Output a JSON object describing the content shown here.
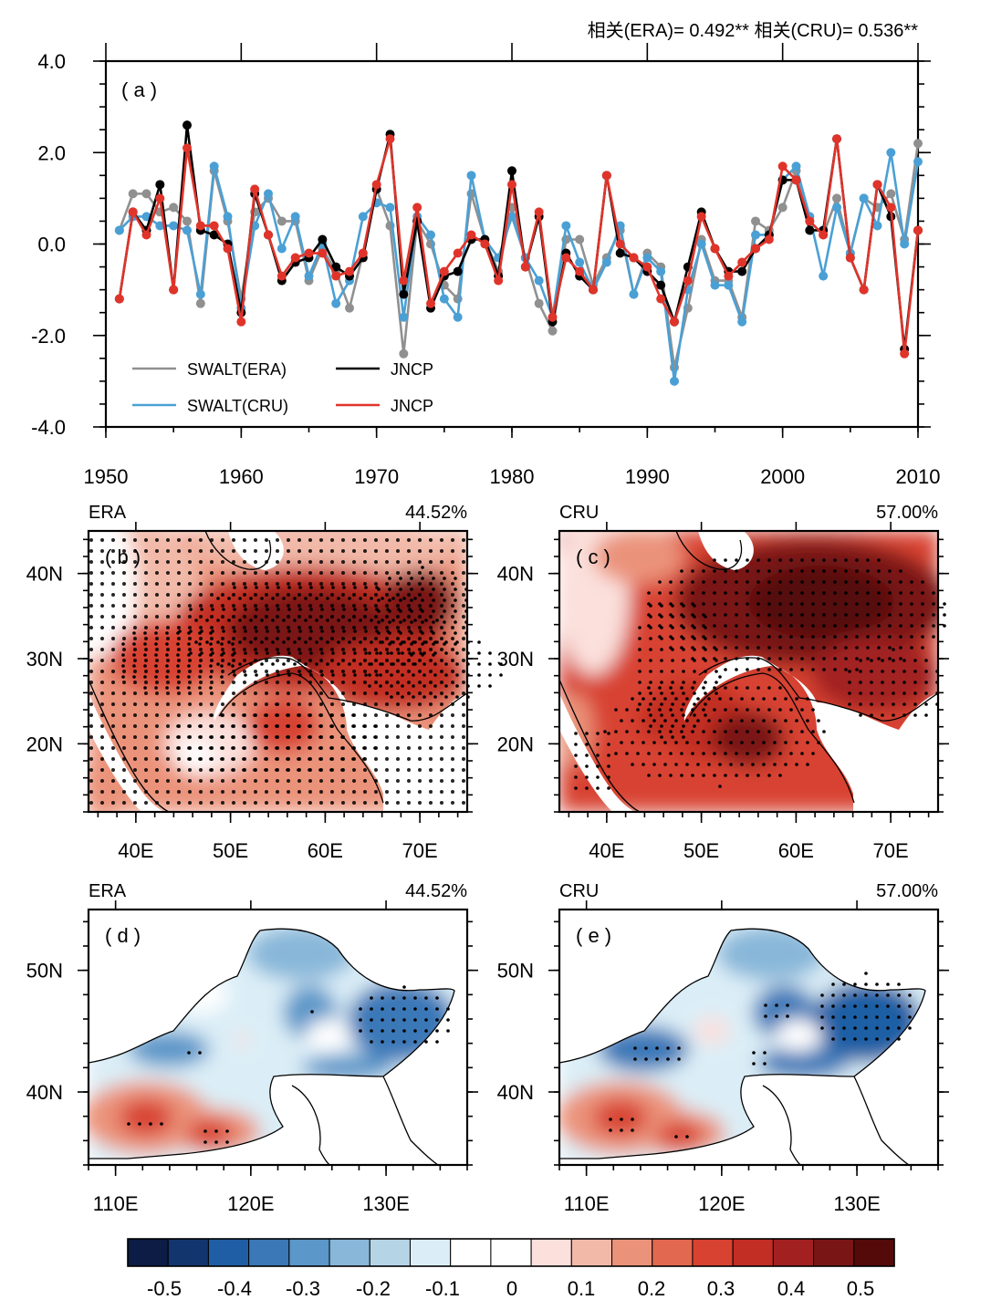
{
  "header": {
    "correlation_text": "相关(ERA)= 0.492** 相关(CRU)= 0.536**"
  },
  "chart_data": [
    {
      "panel": "(a)",
      "type": "line",
      "xlim": [
        1950,
        2010
      ],
      "ylim": [
        -4.0,
        4.0
      ],
      "xticks": [
        "1950",
        "1960",
        "1970",
        "1980",
        "1990",
        "2000",
        "2010"
      ],
      "yticks": [
        "4.0",
        "2.0",
        "0.0",
        "-2.0",
        "-4.0"
      ],
      "legend_placement": "lower-left",
      "x": [
        1951,
        1952,
        1953,
        1954,
        1955,
        1956,
        1957,
        1958,
        1959,
        1960,
        1961,
        1962,
        1963,
        1964,
        1965,
        1966,
        1967,
        1968,
        1969,
        1970,
        1971,
        1972,
        1973,
        1974,
        1975,
        1976,
        1977,
        1978,
        1979,
        1980,
        1981,
        1982,
        1983,
        1984,
        1985,
        1986,
        1987,
        1988,
        1989,
        1990,
        1991,
        1992,
        1993,
        1994,
        1995,
        1996,
        1997,
        1998,
        1999,
        2000,
        2001,
        2002,
        2003,
        2004,
        2005,
        2006,
        2007,
        2008,
        2009,
        2010
      ],
      "series": [
        {
          "name": "SWALT(ERA)",
          "color": "#909090",
          "values": [
            0.3,
            1.1,
            1.1,
            0.7,
            0.8,
            0.5,
            -1.3,
            1.6,
            0.5,
            -1.2,
            0.7,
            1.0,
            0.5,
            0.5,
            -0.8,
            -0.1,
            -0.6,
            -1.4,
            -0.2,
            1.2,
            0.4,
            -2.4,
            0.5,
            0.0,
            -0.9,
            -1.2,
            1.1,
            0.1,
            -0.6,
            0.8,
            -0.3,
            -1.3,
            -1.9,
            0.1,
            0.1,
            -0.9,
            -0.3,
            0.3,
            -1.1,
            -0.2,
            -0.5,
            -2.7,
            -1.4,
            0.1,
            -0.8,
            -0.8,
            -1.6,
            0.5,
            0.3,
            0.8,
            1.6,
            0.5,
            0.2,
            1.0,
            -0.2,
            1.0,
            0.8,
            1.1,
            0.1,
            2.2
          ]
        },
        {
          "name": "SWALT(CRU)",
          "color": "#4aa0d5",
          "values": [
            0.3,
            0.6,
            0.6,
            0.4,
            0.4,
            0.3,
            -1.1,
            1.7,
            0.6,
            -1.4,
            0.4,
            1.1,
            -0.1,
            0.6,
            -0.7,
            0.0,
            -1.3,
            -0.8,
            0.6,
            0.9,
            0.8,
            -1.6,
            0.6,
            0.2,
            -1.2,
            -1.6,
            1.5,
            0.1,
            -0.3,
            0.6,
            -0.3,
            -0.8,
            -1.6,
            0.4,
            -0.4,
            -1.0,
            -0.4,
            0.4,
            -1.1,
            -0.3,
            -0.6,
            -3.0,
            -1.0,
            0.0,
            -0.9,
            -0.9,
            -1.7,
            0.2,
            0.2,
            1.4,
            1.7,
            0.6,
            -0.7,
            0.8,
            -0.2,
            1.0,
            0.4,
            2.0,
            0.0,
            1.8
          ]
        },
        {
          "name": "JNCP",
          "color": "#000000",
          "values": [
            -1.2,
            0.7,
            0.3,
            1.3,
            -1.0,
            2.6,
            0.3,
            0.2,
            0.0,
            -1.5,
            1.1,
            0.2,
            -0.8,
            -0.4,
            -0.3,
            0.1,
            -0.5,
            -0.7,
            -0.3,
            1.2,
            2.4,
            -1.1,
            0.5,
            -1.4,
            -0.7,
            -0.6,
            0.1,
            0.1,
            -0.7,
            1.6,
            -0.5,
            0.6,
            -1.7,
            -0.2,
            -0.7,
            -1.0,
            1.5,
            -0.2,
            -0.3,
            -0.6,
            -0.9,
            -1.7,
            -0.5,
            0.7,
            -0.1,
            -0.6,
            -0.6,
            -0.1,
            0.2,
            1.4,
            1.4,
            0.3,
            0.3,
            2.3,
            -0.3,
            -1.0,
            1.3,
            0.6,
            -2.3,
            0.3
          ]
        },
        {
          "name": "JNCP",
          "color": "#e0342a",
          "values": [
            -1.2,
            0.7,
            0.2,
            1.0,
            -1.0,
            2.1,
            0.4,
            0.4,
            -0.1,
            -1.7,
            1.2,
            0.2,
            -0.7,
            -0.3,
            -0.2,
            -0.2,
            -0.7,
            -0.6,
            -0.2,
            1.3,
            2.3,
            -0.8,
            0.8,
            -1.3,
            -0.6,
            -0.2,
            0.2,
            0.0,
            -0.8,
            1.3,
            -0.5,
            0.7,
            -1.6,
            -0.3,
            -0.6,
            -1.0,
            1.5,
            0.0,
            -0.3,
            -0.5,
            -1.2,
            -1.7,
            -0.8,
            0.6,
            -0.1,
            -0.7,
            -0.4,
            -0.1,
            0.1,
            1.7,
            1.4,
            0.5,
            0.2,
            2.3,
            -0.3,
            -1.0,
            1.3,
            0.8,
            -2.4,
            0.3
          ]
        }
      ]
    },
    {
      "panel": "(b)",
      "type": "heatmap",
      "dataset": "ERA",
      "percent": "44.52%",
      "xticks": [
        "40E",
        "50E",
        "60E",
        "70E"
      ],
      "yticks": [
        "40N",
        "30N",
        "20N"
      ],
      "pattern": "positive correlation, maximum over Iran/Afghanistan (~0.5), weaker over central Arabia, stippled where significant"
    },
    {
      "panel": "(c)",
      "type": "heatmap",
      "dataset": "CRU",
      "percent": "57.00%",
      "xticks": [
        "40E",
        "50E",
        "60E",
        "70E"
      ],
      "yticks": [
        "40N",
        "30N",
        "20N"
      ],
      "pattern": "positive correlation over whole domain, maximum over Iran/Afghanistan/Pakistan, stippled where significant"
    },
    {
      "panel": "(d)",
      "type": "heatmap",
      "dataset": "ERA",
      "percent": "44.52%",
      "xticks": [
        "110E",
        "120E",
        "130E"
      ],
      "yticks": [
        "50N",
        "40N"
      ],
      "pattern": "negative over northeast China and Inner Mongolia, positive over North China Plain; stippled significant areas"
    },
    {
      "panel": "(e)",
      "type": "heatmap",
      "dataset": "CRU",
      "percent": "57.00%",
      "xticks": [
        "110E",
        "120E",
        "130E"
      ],
      "yticks": [
        "50N",
        "40N"
      ],
      "pattern": "negative over northeast China and Inner Mongolia, positive over North China Plain; stippled significant areas"
    }
  ],
  "colorbar": {
    "labels": [
      "-0.5",
      "-0.4",
      "-0.3",
      "-0.2",
      "-0.1",
      "0",
      "0.1",
      "0.2",
      "0.3",
      "0.4",
      "0.5"
    ],
    "colors": [
      "#0c1c45",
      "#12356e",
      "#1f5ea4",
      "#3a78b8",
      "#5b97c9",
      "#88b7d9",
      "#b5d4e6",
      "#dbeef7",
      "#ffffff",
      "#ffffff",
      "#fbe0dc",
      "#f2b9a9",
      "#eb937a",
      "#e2684f",
      "#d84331",
      "#c22d24",
      "#a32020",
      "#7a1515",
      "#550a0a"
    ]
  }
}
